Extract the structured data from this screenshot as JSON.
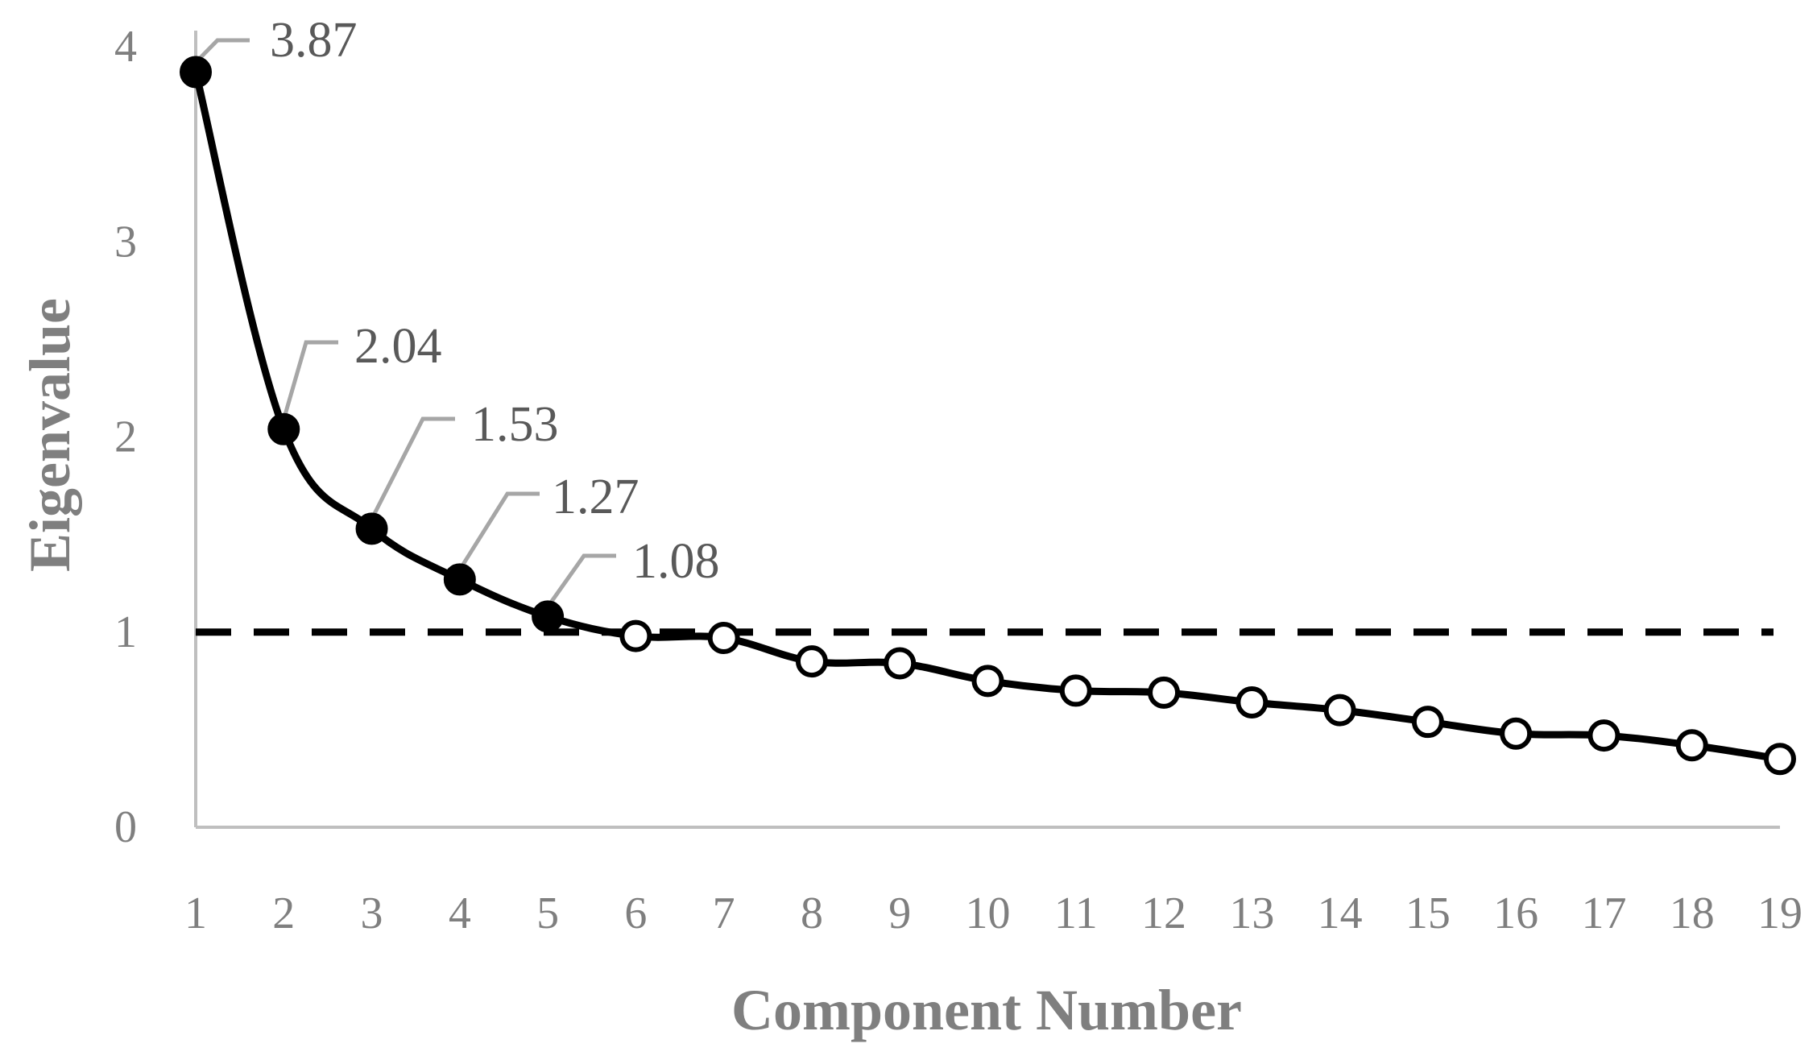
{
  "chart_data": {
    "type": "line",
    "xlabel": "Component Number",
    "ylabel": "Eigenvalue",
    "x": [
      1,
      2,
      3,
      4,
      5,
      6,
      7,
      8,
      9,
      10,
      11,
      12,
      13,
      14,
      15,
      16,
      17,
      18,
      19
    ],
    "xlim": [
      1,
      19
    ],
    "ylim": [
      0,
      4
    ],
    "yticks": [
      0,
      1,
      2,
      3,
      4
    ],
    "series": [
      {
        "values": [
          3.87,
          2.04,
          1.53,
          1.27,
          1.08,
          0.98,
          0.97,
          0.85,
          0.84,
          0.75,
          0.7,
          0.69,
          0.64,
          0.6,
          0.54,
          0.48,
          0.47,
          0.42,
          0.35
        ],
        "line_color": "#000000",
        "filled_marker_color": "#000000",
        "open_marker_color": "#ffffff"
      }
    ],
    "filled_points": 5,
    "data_labels": [
      {
        "x": 1,
        "text": "3.87"
      },
      {
        "x": 2,
        "text": "2.04"
      },
      {
        "x": 3,
        "text": "1.53"
      },
      {
        "x": 4,
        "text": "1.27"
      },
      {
        "x": 5,
        "text": "1.08"
      }
    ],
    "reference_line": {
      "y": 1,
      "style": "dashed",
      "color": "#000000"
    },
    "grid": false,
    "legend": "none",
    "axis_color": "#bfbfbf",
    "leader_line_color": "#a6a6a6"
  }
}
